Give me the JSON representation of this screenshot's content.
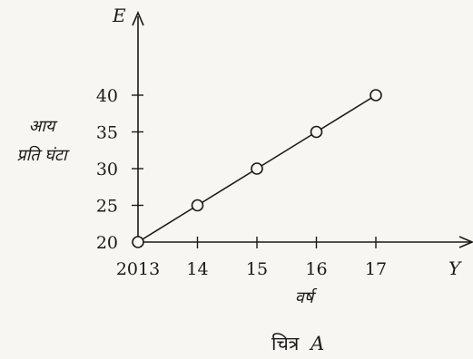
{
  "chart_data": {
    "type": "line",
    "x": [
      "2013",
      "14",
      "15",
      "16",
      "17"
    ],
    "values": [
      20,
      25,
      30,
      35,
      40
    ],
    "y_ticks": [
      "20",
      "25",
      "30",
      "35",
      "40"
    ],
    "ylim": [
      20,
      40
    ],
    "y_axis_name": "E",
    "x_axis_name": "Y",
    "ylabel_lines": [
      "आय",
      "प्रति घंटा"
    ],
    "xlabel": "वर्ष",
    "caption_word": "चित्र",
    "caption_letter": "A",
    "grid": false,
    "marker": "open-circle"
  }
}
